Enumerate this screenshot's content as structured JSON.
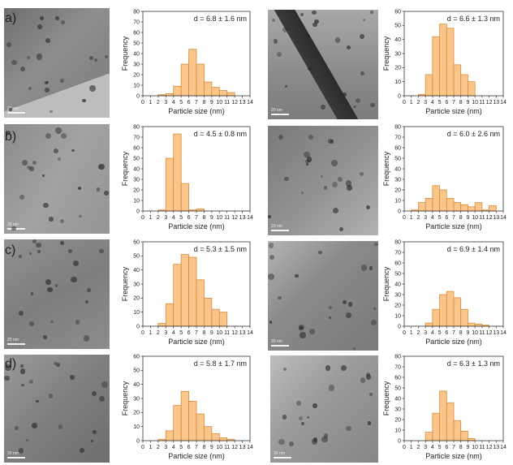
{
  "row_labels": [
    "a)",
    "b)",
    "c)",
    "d)"
  ],
  "images": [
    {
      "scale_text": "20 nm"
    },
    {
      "scale_text": "20 nm"
    },
    {
      "scale_text": "20 nm"
    },
    {
      "scale_text": "20 nm"
    },
    {
      "scale_text": "20 nm"
    },
    {
      "scale_text": "20 nm"
    },
    {
      "scale_text": "20 nm"
    },
    {
      "scale_text": "20 nm"
    }
  ],
  "style": {
    "bar_fill": "#fbc68c",
    "bar_stroke": "#d88a38"
  },
  "chart_data": [
    {
      "type": "bar",
      "annotation": "d = 6.8 ± 1.6 nm",
      "xlabel": "Particle size (nm)",
      "ylabel": "Frequency",
      "xlim": [
        0,
        14
      ],
      "ylim": [
        0,
        80
      ],
      "xticks": [
        0,
        1,
        2,
        3,
        4,
        5,
        6,
        7,
        8,
        9,
        10,
        11,
        12,
        13,
        14
      ],
      "yticks": [
        0,
        10,
        20,
        30,
        40,
        50,
        60,
        70,
        80
      ],
      "bins": [
        2,
        3,
        4,
        5,
        6,
        7,
        8,
        9,
        10,
        11
      ],
      "values": [
        1,
        2,
        9,
        30,
        44,
        30,
        13,
        8,
        5,
        3
      ]
    },
    {
      "type": "bar",
      "annotation": "d = 6.6 ± 1.3 nm",
      "xlabel": "Particle size (nm)",
      "ylabel": "Frequency",
      "xlim": [
        0,
        14
      ],
      "ylim": [
        0,
        60
      ],
      "xticks": [
        0,
        1,
        2,
        3,
        4,
        5,
        6,
        7,
        8,
        9,
        10,
        11,
        12,
        13,
        14
      ],
      "yticks": [
        0,
        10,
        20,
        30,
        40,
        50,
        60
      ],
      "bins": [
        2,
        3,
        4,
        5,
        6,
        7,
        8,
        9
      ],
      "values": [
        1,
        15,
        42,
        51,
        48,
        22,
        15,
        10
      ]
    },
    {
      "type": "bar",
      "annotation": "d = 4.5 ± 0.8 nm",
      "xlabel": "Particle size (nm)",
      "ylabel": "Frequency",
      "xlim": [
        0,
        14
      ],
      "ylim": [
        0,
        80
      ],
      "xticks": [
        0,
        1,
        2,
        3,
        4,
        5,
        6,
        7,
        8,
        9,
        10,
        11,
        12,
        13,
        14
      ],
      "yticks": [
        0,
        10,
        20,
        30,
        40,
        50,
        60,
        70,
        80
      ],
      "bins": [
        2,
        3,
        4,
        5,
        6,
        7
      ],
      "values": [
        1,
        50,
        73,
        26,
        1,
        2
      ]
    },
    {
      "type": "bar",
      "annotation": "d = 6.0 ± 2.6 nm",
      "xlabel": "Particle size (nm)",
      "ylabel": "Frequency",
      "xlim": [
        0,
        14
      ],
      "ylim": [
        0,
        80
      ],
      "xticks": [
        0,
        1,
        2,
        3,
        4,
        5,
        6,
        7,
        8,
        9,
        10,
        11,
        12,
        13,
        14
      ],
      "yticks": [
        0,
        10,
        20,
        30,
        40,
        50,
        60,
        70,
        80
      ],
      "bins": [
        1,
        2,
        3,
        4,
        5,
        6,
        7,
        8,
        9,
        10,
        11,
        12
      ],
      "values": [
        1,
        8,
        12,
        24,
        20,
        12,
        8,
        6,
        4,
        8,
        1,
        5
      ]
    },
    {
      "type": "bar",
      "annotation": "d = 5.3 ± 1.5 nm",
      "xlabel": "Particle size (nm)",
      "ylabel": "Frequency",
      "xlim": [
        0,
        14
      ],
      "ylim": [
        0,
        60
      ],
      "xticks": [
        0,
        1,
        2,
        3,
        4,
        5,
        6,
        7,
        8,
        9,
        10,
        11,
        12,
        13,
        14
      ],
      "yticks": [
        0,
        10,
        20,
        30,
        40,
        50,
        60
      ],
      "bins": [
        2,
        3,
        4,
        5,
        6,
        7,
        8,
        9,
        10
      ],
      "values": [
        2,
        16,
        44,
        51,
        49,
        33,
        20,
        12,
        10
      ]
    },
    {
      "type": "bar",
      "annotation": "d = 6.9 ± 1.4 nm",
      "xlabel": "Particle size (nm)",
      "ylabel": "Frequency",
      "xlim": [
        0,
        14
      ],
      "ylim": [
        0,
        80
      ],
      "xticks": [
        0,
        1,
        2,
        3,
        4,
        5,
        6,
        7,
        8,
        9,
        10,
        11,
        12,
        13,
        14
      ],
      "yticks": [
        0,
        10,
        20,
        30,
        40,
        50,
        60,
        70,
        80
      ],
      "bins": [
        3,
        4,
        5,
        6,
        7,
        8,
        9,
        10,
        11
      ],
      "values": [
        3,
        16,
        30,
        33,
        27,
        16,
        3,
        2,
        1
      ]
    },
    {
      "type": "bar",
      "annotation": "d = 5.8 ± 1.7 nm",
      "xlabel": "Particle size (nm)",
      "ylabel": "Frequency",
      "xlim": [
        0,
        14
      ],
      "ylim": [
        0,
        60
      ],
      "xticks": [
        0,
        1,
        2,
        3,
        4,
        5,
        6,
        7,
        8,
        9,
        10,
        11,
        12,
        13,
        14
      ],
      "yticks": [
        0,
        10,
        20,
        30,
        40,
        50,
        60
      ],
      "bins": [
        2,
        3,
        4,
        5,
        6,
        7,
        8,
        9,
        10,
        11
      ],
      "values": [
        1,
        7,
        25,
        35,
        28,
        19,
        10,
        5,
        2,
        1
      ]
    },
    {
      "type": "bar",
      "annotation": "d = 6.3 ± 1.3 nm",
      "xlabel": "Particle size (nm)",
      "ylabel": "Frequency",
      "xlim": [
        0,
        14
      ],
      "ylim": [
        0,
        80
      ],
      "xticks": [
        0,
        1,
        2,
        3,
        4,
        5,
        6,
        7,
        8,
        9,
        10,
        11,
        12,
        13,
        14
      ],
      "yticks": [
        0,
        10,
        20,
        30,
        40,
        50,
        60,
        70,
        80
      ],
      "bins": [
        3,
        4,
        5,
        6,
        7,
        8,
        9
      ],
      "values": [
        8,
        26,
        47,
        36,
        19,
        9,
        2
      ]
    }
  ]
}
